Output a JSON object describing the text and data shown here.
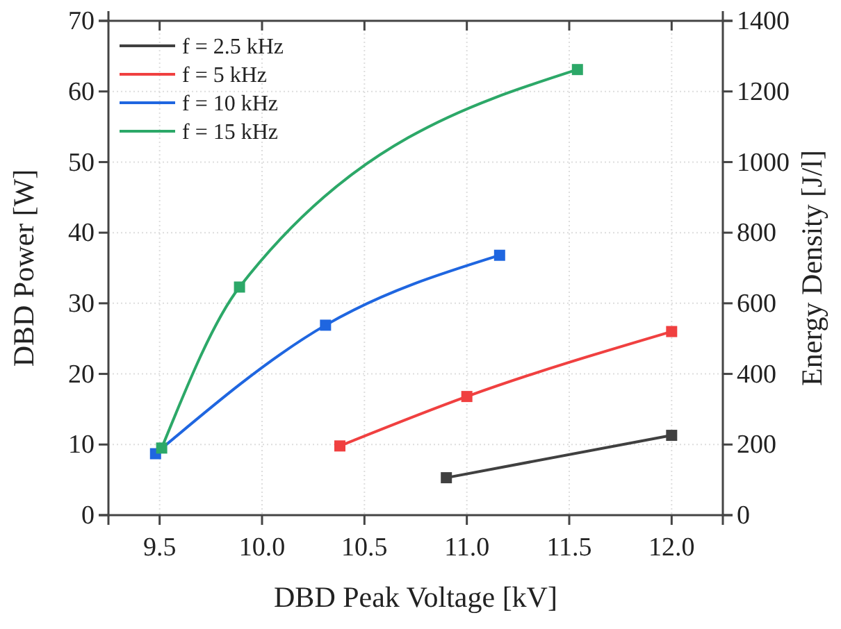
{
  "chart_data": {
    "type": "line",
    "xlabel": "DBD Peak Voltage [kV]",
    "ylabel": "DBD Power [W]",
    "y2label": "Energy Density [J/l]",
    "xlim": [
      9.25,
      12.25
    ],
    "xticks": [
      {
        "value": 9.5,
        "label": "9.5"
      },
      {
        "value": 10,
        "label": "10.0"
      },
      {
        "value": 10.5,
        "label": "10.5"
      },
      {
        "value": 11,
        "label": "11.0"
      },
      {
        "value": 11.5,
        "label": "11.5"
      },
      {
        "value": 12,
        "label": "12.0"
      }
    ],
    "ylim": [
      0,
      70
    ],
    "yticks": [
      0,
      10,
      20,
      30,
      40,
      50,
      60,
      70
    ],
    "y2lim": [
      0,
      1400
    ],
    "y2ticks": [
      0,
      200,
      400,
      600,
      800,
      1000,
      1200,
      1400
    ],
    "grid": true,
    "legend": "top left",
    "marker": "square",
    "line_style": "solid",
    "series": [
      {
        "name": "f = 2.5 kHz",
        "color": "#404040",
        "x": [
          10.9,
          12.0
        ],
        "values": [
          5.3,
          11.3
        ]
      },
      {
        "name": "f = 5 kHz",
        "color": "#f04040",
        "x": [
          10.38,
          11.0,
          12.0
        ],
        "values": [
          9.8,
          16.8,
          26.0
        ]
      },
      {
        "name": "f = 10 kHz",
        "color": "#1f66e0",
        "x": [
          9.48,
          10.31,
          11.16
        ],
        "values": [
          8.7,
          26.9,
          36.8
        ]
      },
      {
        "name": "f = 15 kHz",
        "color": "#2ca868",
        "x": [
          9.51,
          9.89,
          11.54
        ],
        "values": [
          9.5,
          32.3,
          63.1
        ]
      }
    ]
  }
}
